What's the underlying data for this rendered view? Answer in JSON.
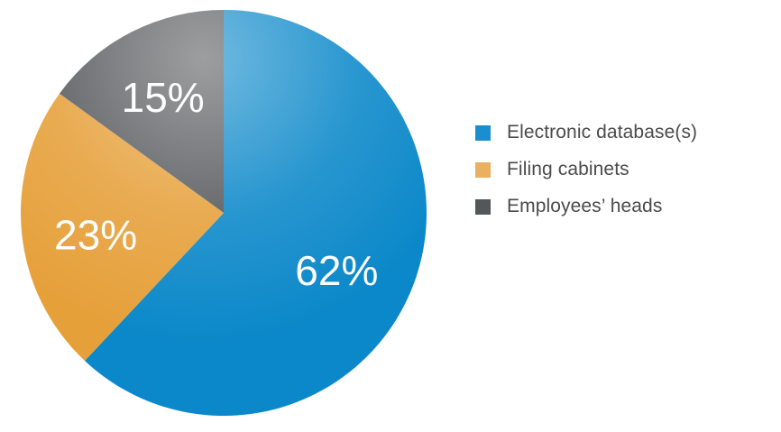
{
  "chart_data": {
    "type": "pie",
    "title": "",
    "slices": [
      {
        "label": "Electronic database(s)",
        "value": 62,
        "value_label": "62%",
        "color": "#0b88c9",
        "legend_color": "#1a8fd0"
      },
      {
        "label": "Filing cabinets",
        "value": 23,
        "value_label": "23%",
        "color": "#e6a03a",
        "legend_color": "#e8b060"
      },
      {
        "label": "Employees’ heads",
        "value": 15,
        "value_label": "15%",
        "color": "#55585b",
        "legend_color": "#54575a"
      }
    ],
    "start_angle": "12 o'clock",
    "direction": "clockwise",
    "legend_position": "right"
  },
  "legend": {
    "items": [
      {
        "label": "Electronic database(s)",
        "color": "#1a8fd0"
      },
      {
        "label": "Filing cabinets",
        "color": "#e8b060"
      },
      {
        "label": "Employees’ heads",
        "color": "#54575a"
      }
    ]
  }
}
